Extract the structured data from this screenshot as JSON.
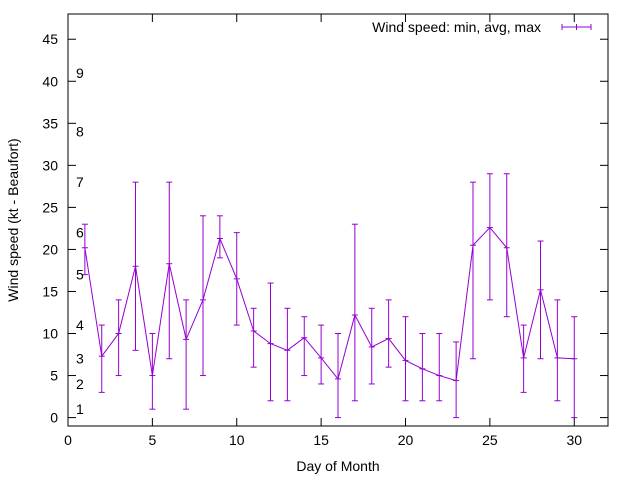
{
  "chart_data": {
    "type": "line",
    "title": "",
    "xlabel": "Day of Month",
    "ylabel": "Wind speed (kt - Beaufort)",
    "xlim": [
      0,
      32
    ],
    "ylim": [
      -1,
      48
    ],
    "x_ticks": [
      0,
      5,
      10,
      15,
      20,
      25,
      30
    ],
    "y_ticks": [
      0,
      5,
      10,
      15,
      20,
      25,
      30,
      35,
      40,
      45
    ],
    "grid": false,
    "legend_position": "top-right",
    "series": [
      {
        "name": "Wind speed: min, avg, max",
        "color": "#9400d3",
        "points": [
          {
            "x": 1,
            "min": 17,
            "avg": 20.2,
            "max": 23
          },
          {
            "x": 2,
            "min": 3,
            "avg": 7.3,
            "max": 11
          },
          {
            "x": 3,
            "min": 5,
            "avg": 10,
            "max": 14
          },
          {
            "x": 4,
            "min": 8,
            "avg": 18,
            "max": 28
          },
          {
            "x": 5,
            "min": 1,
            "avg": 5,
            "max": 10
          },
          {
            "x": 6,
            "min": 7,
            "avg": 18.3,
            "max": 28
          },
          {
            "x": 7,
            "min": 1,
            "avg": 9.3,
            "max": 14
          },
          {
            "x": 8,
            "min": 5,
            "avg": 14,
            "max": 24
          },
          {
            "x": 9,
            "min": 19,
            "avg": 21.3,
            "max": 24
          },
          {
            "x": 10,
            "min": 11,
            "avg": 16.5,
            "max": 22
          },
          {
            "x": 11,
            "min": 6,
            "avg": 10.3,
            "max": 13
          },
          {
            "x": 12,
            "min": 2,
            "avg": 8.8,
            "max": 16
          },
          {
            "x": 13,
            "min": 2,
            "avg": 8,
            "max": 13
          },
          {
            "x": 14,
            "min": 5,
            "avg": 9.5,
            "max": 12
          },
          {
            "x": 15,
            "min": 4,
            "avg": 7.1,
            "max": 11
          },
          {
            "x": 16,
            "min": 0,
            "avg": 4.6,
            "max": 10
          },
          {
            "x": 17,
            "min": 2,
            "avg": 12.2,
            "max": 23
          },
          {
            "x": 18,
            "min": 4,
            "avg": 8.4,
            "max": 13
          },
          {
            "x": 19,
            "min": 6,
            "avg": 9.4,
            "max": 14
          },
          {
            "x": 20,
            "min": 2,
            "avg": 6.8,
            "max": 12
          },
          {
            "x": 21,
            "min": 2,
            "avg": 5.8,
            "max": 10
          },
          {
            "x": 22,
            "min": 2,
            "avg": 5,
            "max": 10
          },
          {
            "x": 23,
            "min": 0,
            "avg": 4.4,
            "max": 9
          },
          {
            "x": 24,
            "min": 7,
            "avg": 20.5,
            "max": 28
          },
          {
            "x": 25,
            "min": 14,
            "avg": 22.6,
            "max": 29
          },
          {
            "x": 26,
            "min": 12,
            "avg": 20.2,
            "max": 29
          },
          {
            "x": 27,
            "min": 3,
            "avg": 7.1,
            "max": 11
          },
          {
            "x": 28,
            "min": 7,
            "avg": 15.2,
            "max": 21
          },
          {
            "x": 29,
            "min": 2,
            "avg": 7.1,
            "max": 14
          },
          {
            "x": 30,
            "min": 0,
            "avg": 7,
            "max": 12
          }
        ]
      }
    ],
    "annotations": [
      {
        "text": "1",
        "y": 1
      },
      {
        "text": "2",
        "y": 4
      },
      {
        "text": "3",
        "y": 7
      },
      {
        "text": "4",
        "y": 11
      },
      {
        "text": "5",
        "y": 17
      },
      {
        "text": "6",
        "y": 22
      },
      {
        "text": "7",
        "y": 28
      },
      {
        "text": "8",
        "y": 34
      },
      {
        "text": "9",
        "y": 41
      }
    ]
  }
}
